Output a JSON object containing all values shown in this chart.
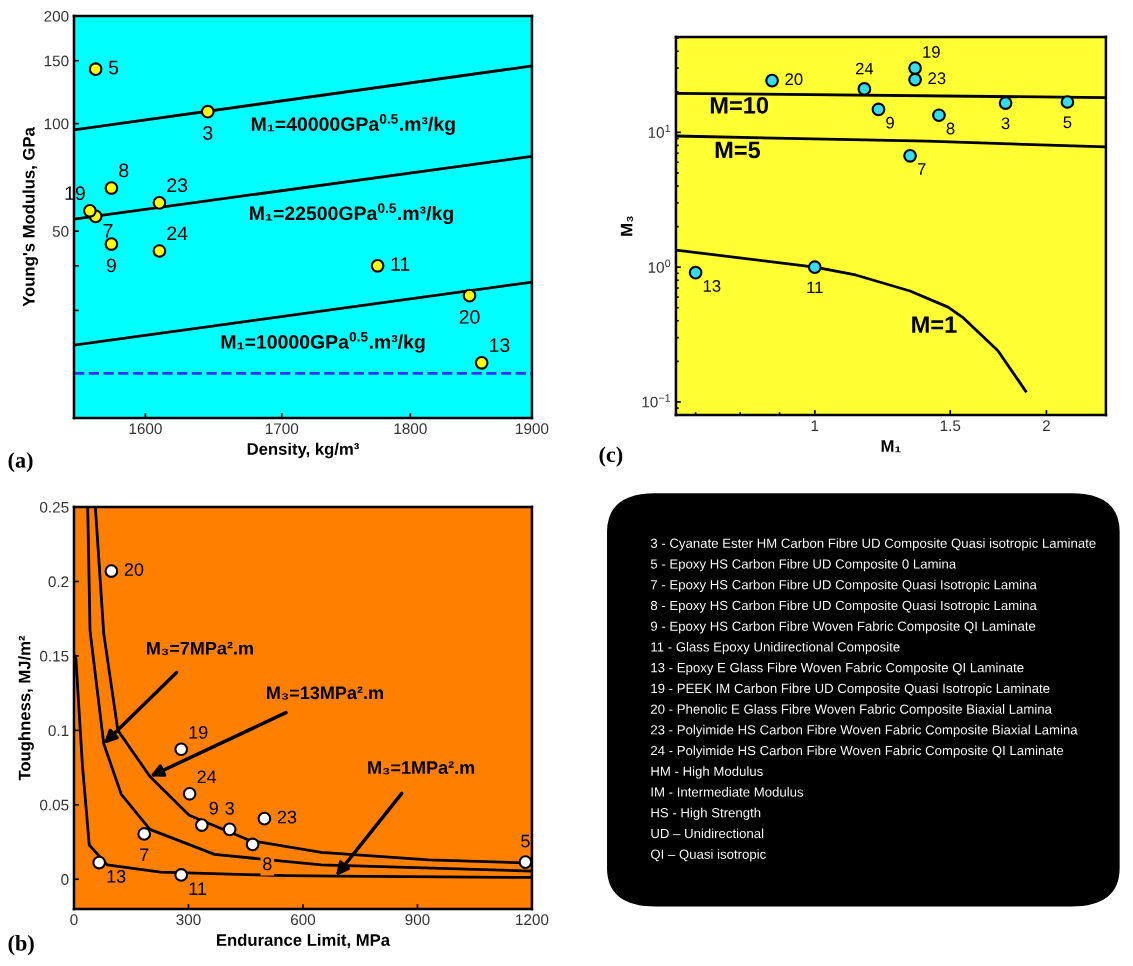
{
  "chart_data": [
    {
      "type": "scatter",
      "xlabel": "Density, kg/m³",
      "ylabel": "Young's Modulus, GPa",
      "log": "xy",
      "xlim": [
        1550,
        1900
      ],
      "ylim": [
        15,
        200
      ],
      "xticks": [
        1600,
        1700,
        1800,
        1900
      ],
      "yticks": [
        {
          "value": 30,
          "label": null
        },
        {
          "value": 40,
          "label": null
        },
        50,
        100,
        150,
        200
      ],
      "series": [
        {
          "type": "line",
          "name": "M₁=40000GPa$^{0.5}$.m³/kg",
          "color": "#000000",
          "x": [
            1550,
            1900
          ],
          "values": [
            96,
            145
          ]
        },
        {
          "type": "line",
          "name": "M₁=22500GPa$^{0.5}$.m³/kg",
          "color": "#000000",
          "x": [
            1550,
            1900
          ],
          "values": [
            54,
            81
          ]
        },
        {
          "type": "line",
          "name": "M₁=10000GPa$^{0.5}$.m³/kg",
          "color": "#000000",
          "x": [
            1550,
            1900
          ],
          "values": [
            24,
            36
          ]
        },
        {
          "type": "scatter",
          "color": "#ffff00",
          "marker": "circle",
          "x": [
            1645,
            1565,
            1565,
            1576,
            1576,
            1774,
            1858,
            1561,
            1848,
            1610,
            1610
          ],
          "values": [
            108,
            142,
            55,
            66,
            46,
            40,
            21.4,
            57,
            33,
            60,
            44
          ]
        }
      ],
      "ref_lines": [
        {
          "axis": "y",
          "value": 20,
          "color": "#3333ff",
          "line_style": "dashed"
        }
      ],
      "annotations": [
        "(a)",
        {
          "text": "3",
          "x": 1645,
          "y": 108
        },
        {
          "text": "5",
          "x": 1565,
          "y": 142
        },
        {
          "text": "7",
          "x": 1565,
          "y": 55
        },
        {
          "text": "8",
          "x": 1576,
          "y": 66
        },
        {
          "text": "9",
          "x": 1576,
          "y": 46
        },
        {
          "text": "11",
          "x": 1774,
          "y": 40
        },
        {
          "text": "13",
          "x": 1858,
          "y": 21.4
        },
        {
          "text": "19",
          "x": 1561,
          "y": 57
        },
        {
          "text": "20",
          "x": 1848,
          "y": 33
        },
        {
          "text": "23",
          "x": 1610,
          "y": 60
        },
        {
          "text": "24",
          "x": 1610,
          "y": 44
        }
      ]
    },
    {
      "type": "scatter",
      "xlabel": "M₁",
      "ylabel": "M₃",
      "log": "xy",
      "xlim": [
        0.66,
        2.39
      ],
      "ylim": [
        0.08,
        51
      ],
      "xticks": [
        1,
        1.5,
        2
      ],
      "yticks": [
        {
          "value": 0.1,
          "label": "10$^{−1}$"
        },
        {
          "value": 1,
          "label": "10$^{0}$"
        },
        {
          "value": 10,
          "label": "10$^{1}$"
        }
      ],
      "series": [
        {
          "type": "line",
          "name": "M=10",
          "color": "#000000",
          "x": [
            0.66,
            2.39
          ],
          "values": [
            19.5,
            18.1
          ]
        },
        {
          "type": "line",
          "name": "M=5",
          "color": "#000000",
          "x": [
            0.66,
            1.4,
            2.39
          ],
          "values": [
            9.4,
            8.6,
            7.8
          ]
        },
        {
          "type": "line",
          "name": "M=1",
          "color": "#000000",
          "x": [
            0.66,
            1.0,
            1.13,
            1.33,
            1.49,
            1.56,
            1.73,
            1.88
          ],
          "values": [
            1.34,
            1.0,
            0.875,
            0.665,
            0.505,
            0.42,
            0.24,
            0.12
          ]
        },
        {
          "type": "scatter",
          "color": "#33ddee",
          "marker": "circle",
          "x": [
            1.77,
            2.13,
            1.33,
            1.45,
            1.21,
            1.0,
            0.7,
            1.35,
            0.88,
            1.35,
            1.16
          ],
          "values": [
            16.5,
            16.8,
            6.7,
            13.4,
            14.8,
            1.0,
            0.91,
            30,
            24.2,
            24.6,
            21
          ]
        }
      ],
      "annotations": [
        "(c)",
        {
          "text": "3",
          "x": 1.77,
          "y": 16.5
        },
        {
          "text": "5",
          "x": 2.13,
          "y": 16.8
        },
        {
          "text": "7",
          "x": 1.33,
          "y": 6.7
        },
        {
          "text": "8",
          "x": 1.45,
          "y": 13.4
        },
        {
          "text": "9",
          "x": 1.21,
          "y": 14.8
        },
        {
          "text": "11",
          "x": 1.0,
          "y": 1.0
        },
        {
          "text": "13",
          "x": 0.7,
          "y": 0.91
        },
        {
          "text": "19",
          "x": 1.35,
          "y": 30
        },
        {
          "text": "20",
          "x": 0.88,
          "y": 24.2
        },
        {
          "text": "23",
          "x": 1.35,
          "y": 24.6
        },
        {
          "text": "24",
          "x": 1.16,
          "y": 21
        }
      ]
    },
    {
      "type": "scatter",
      "xlabel": "Endurance Limit, MPa",
      "ylabel": "Toughness, MJ/m²",
      "xlim": [
        0,
        1200
      ],
      "ylim": [
        -0.02,
        0.25
      ],
      "xticks": [
        0,
        300,
        600,
        900,
        1200
      ],
      "yticks": [
        0,
        0.05,
        0.1,
        0.15,
        0.2,
        0.25
      ],
      "series": [
        {
          "type": "line",
          "color": "#000000",
          "x": [
            56,
            78,
            115,
            199,
            302,
            461,
            648,
            929,
            1200
          ],
          "values": [
            0.25,
            0.165,
            0.1,
            0.069,
            0.043,
            0.026,
            0.018,
            0.013,
            0.0108
          ]
        },
        {
          "type": "line",
          "color": "#000000",
          "x": [
            36,
            42,
            78,
            124,
            199,
            368,
            648,
            1200
          ],
          "values": [
            0.25,
            0.167,
            0.091,
            0.057,
            0.0335,
            0.0167,
            0.0096,
            0.0055
          ]
        },
        {
          "type": "line",
          "color": "#000000",
          "x": [
            0,
            5,
            22,
            40,
            87,
            227,
            555,
            686,
            1200
          ],
          "values": [
            0.151,
            0.148,
            0.077,
            0.023,
            0.0096,
            0.0048,
            0.0024,
            0.0021,
            0.0012
          ]
        },
        {
          "type": "scatter",
          "color": "#ffffff",
          "marker": "circle",
          "x": [
            408,
            1183,
            184,
            468,
            335,
            281,
            66,
            281,
            98,
            499,
            303
          ],
          "values": [
            0.0335,
            0.0115,
            0.0304,
            0.0234,
            0.0364,
            0.0029,
            0.0112,
            0.0873,
            0.207,
            0.0407,
            0.0574
          ]
        }
      ],
      "annotations": [
        "(b)",
        {
          "text": "M₃=7MPa².m",
          "x": 78,
          "y": 0.091
        },
        {
          "text": "M₃=13MPa².m",
          "x": 199,
          "y": 0.069
        },
        {
          "text": "M₃=1MPa².m",
          "x": 686,
          "y": 0.0021
        },
        {
          "text": "3",
          "x": 408,
          "y": 0.0335
        },
        {
          "text": "5",
          "x": 1183,
          "y": 0.0115
        },
        {
          "text": "7",
          "x": 184,
          "y": 0.0304
        },
        {
          "text": "8",
          "x": 468,
          "y": 0.0234
        },
        {
          "text": "9",
          "x": 335,
          "y": 0.0364
        },
        {
          "text": "11",
          "x": 281,
          "y": 0.0029
        },
        {
          "text": "13",
          "x": 66,
          "y": 0.0112
        },
        {
          "text": "19",
          "x": 281,
          "y": 0.0873
        },
        {
          "text": "20",
          "x": 98,
          "y": 0.207
        },
        {
          "text": "23",
          "x": 499,
          "y": 0.0407
        },
        {
          "text": "24",
          "x": 303,
          "y": 0.0574
        }
      ]
    },
    {
      "type": "other",
      "annotations": [
        "3 - Cyanate Ester HM Carbon Fibre UD Composite Quasi isotropic Laminate",
        "5 - Epoxy HS Carbon Fibre UD Composite 0 Lamina",
        "7 - Epoxy HS Carbon Fibre UD Composite Quasi Isotropic Lamina",
        "8 - Epoxy HS Carbon Fibre UD Composite Quasi Isotropic Lamina",
        "9 - Epoxy HS Carbon Fibre Woven Fabric Composite QI Laminate",
        "11 - Glass Epoxy Unidirectional Composite",
        "13 - Epoxy E Glass Fibre Woven Fabric Composite QI Laminate",
        "19 - PEEK IM Carbon Fibre UD Composite Quasi Isotropic Laminate",
        "20 - Phenolic E Glass Fibre Woven Fabric Composite Biaxial Lamina",
        "23 - Polyimide HS Carbon Fibre Woven Fabric Composite Biaxial Lamina",
        "24 - Polyimide HS Carbon Fibre Woven Fabric Composite QI Laminate",
        "HM - High Modulus",
        "IM - Intermediate Modulus",
        "HS - High Strength",
        "UD – Unidirectional",
        "QI – Quasi isotropic"
      ]
    }
  ]
}
